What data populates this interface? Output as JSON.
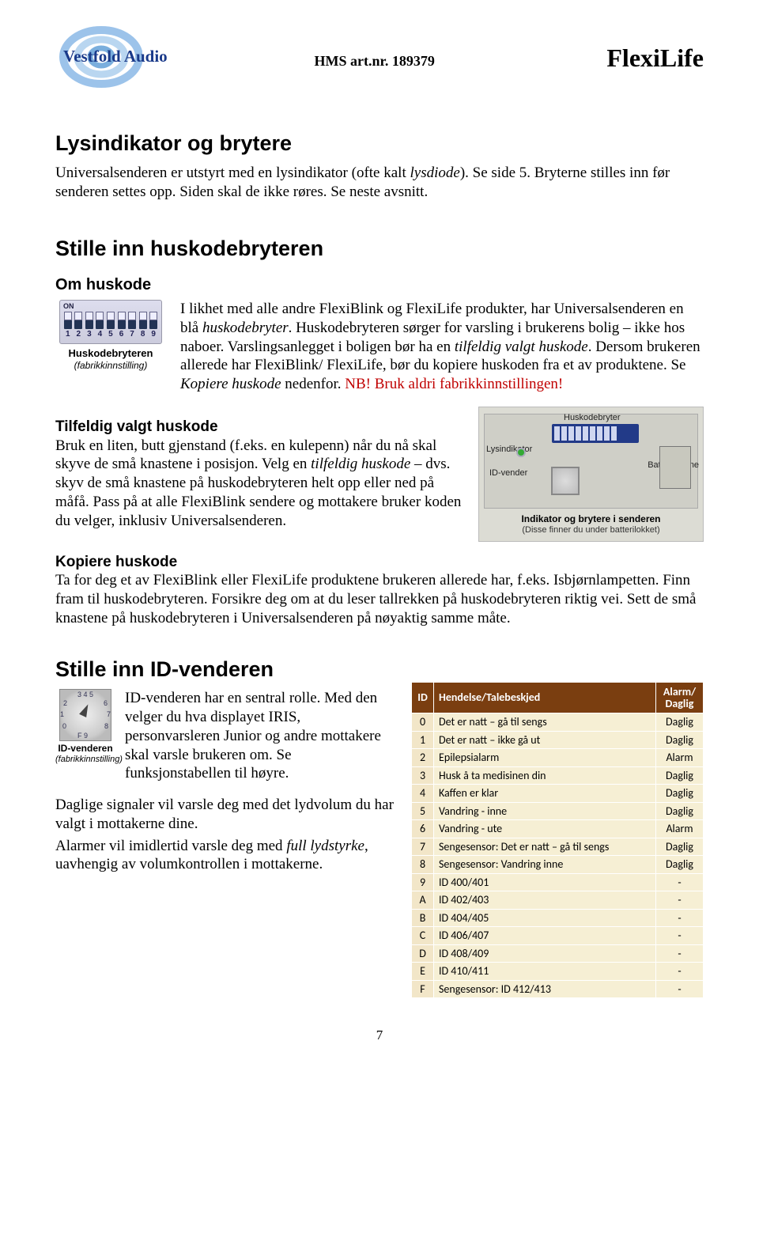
{
  "header": {
    "logo_text": "Vestfold Audio",
    "hms": "HMS art.nr. 189379",
    "brand": "FlexiLife"
  },
  "s1": {
    "title": "Lysindikator og brytere",
    "body": "Universalsenderen er utstyrt med en lysindikator (ofte kalt lysdiode). Se side 5. Bryterne stilles inn før senderen settes opp. Siden skal de ikke røres. Se neste avsnitt."
  },
  "s2": {
    "title": "Stille inn huskodebryteren",
    "sub1": "Om huskode",
    "dip_caption": "Huskodebryteren",
    "dip_caption2": "(fabrikkinnstilling)",
    "body1a": "I likhet med alle andre FlexiBlink og FlexiLife produkter, har Univer­salsenderen en blå huskodebryter. Huskodebryteren sørger for varsling i brukerens bolig – ikke hos naboer. Varslingsanlegget i boligen bør ha en tilfeldig valgt huskode. Dersom brukeren allerede har FlexiBlink/ FlexiLife, bør du kopiere huskoden fra et av produktene. Se Kopiere huskode nedenfor. ",
    "nb": "NB! Bruk aldri fabrikkinnstillingen!",
    "sub2": "Tilfeldig valgt huskode",
    "body2": "Bruk en liten, butt gjenstand (f.eks. en kulepenn) når du nå skal skyve de små knastene i posisjon. Velg en tilfeldig huskode – dvs. skyv de små knastene på huskodebryteren helt opp eller ned på måfå. Pass på at alle FlexiBlink sendere og mottakere bruker koden du velger, inklusiv Universalsenderen.",
    "sub3": "Kopiere huskode",
    "body3": "Ta for deg et av FlexiBlink eller FlexiLife produktene brukeren allerede har, f.eks. Isbjørnlampetten. Finn fram til huskodebryteren. Forsikre deg om at du leser tallrekken på huskodebryteren riktig vei. Sett de små knastene på huskodebryteren i Universalsenderen på nøyaktig samme måte.",
    "device_labels": {
      "husk": "Huskodebryter",
      "lys": "Lysindikator",
      "idv": "ID-vender",
      "batt": "Batterilomme",
      "cap": "Indikator og brytere i senderen",
      "sub": "(Disse finner du under batterilokket)"
    }
  },
  "s3": {
    "title": "Stille inn ID-venderen",
    "id_caption1": "ID-venderen",
    "id_caption2": "(fabrikkinnstilling)",
    "body1": "ID-venderen har en sentral rolle. Med den velger du hva displayet IRIS, personvarsleren Junior og andre mottakere skal varsle brukeren om. Se funksjonstabellen til høyre.",
    "body2": "Daglige signaler vil varsle deg med det lydvolum du har valgt i mottakerne dine.",
    "body3": "Alarmer vil imidlertid varsle deg med full lydstyrke, uavhengig av volumkontrollen i mottakerne."
  },
  "table": {
    "head": {
      "c1": "ID",
      "c2": "Hendelse/Talebeskjed",
      "c3a": "Alarm/",
      "c3b": "Daglig"
    },
    "rows": [
      {
        "id": "0",
        "ev": "Det er natt – gå til sengs",
        "ad": "Daglig"
      },
      {
        "id": "1",
        "ev": "Det er natt – ikke gå ut",
        "ad": "Daglig"
      },
      {
        "id": "2",
        "ev": "Epilepsialarm",
        "ad": "Alarm"
      },
      {
        "id": "3",
        "ev": "Husk å ta medisinen din",
        "ad": "Daglig"
      },
      {
        "id": "4",
        "ev": "Kaffen er klar",
        "ad": "Daglig"
      },
      {
        "id": "5",
        "ev": "Vandring - inne",
        "ad": "Daglig"
      },
      {
        "id": "6",
        "ev": "Vandring - ute",
        "ad": "Alarm"
      },
      {
        "id": "7",
        "ev": "Sengesensor: Det er natt – gå til sengs",
        "ad": "Daglig"
      },
      {
        "id": "8",
        "ev": "Sengesensor: Vandring inne",
        "ad": "Daglig"
      },
      {
        "id": "9",
        "ev": "ID 400/401",
        "ad": "-"
      },
      {
        "id": "A",
        "ev": "ID 402/403",
        "ad": "-"
      },
      {
        "id": "B",
        "ev": "ID 404/405",
        "ad": "-"
      },
      {
        "id": "C",
        "ev": "ID 406/407",
        "ad": "-"
      },
      {
        "id": "D",
        "ev": "ID 408/409",
        "ad": "-"
      },
      {
        "id": "E",
        "ev": "ID 410/411",
        "ad": "-"
      },
      {
        "id": "F",
        "ev": "Sengesensor: ID 412/413",
        "ad": "-"
      }
    ]
  },
  "page": "7",
  "dip_numbers": [
    "1",
    "2",
    "3",
    "4",
    "5",
    "6",
    "7",
    "8",
    "9"
  ]
}
